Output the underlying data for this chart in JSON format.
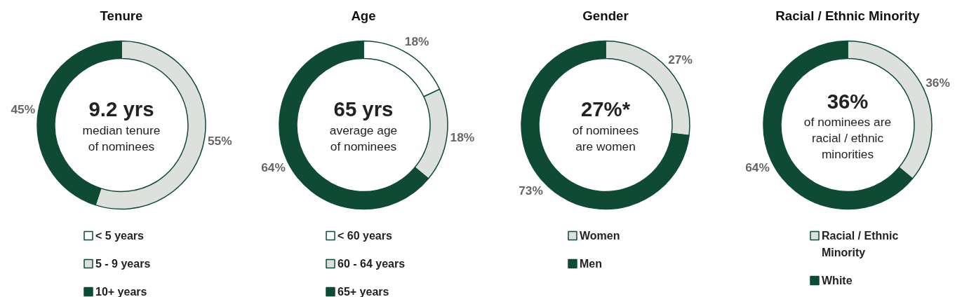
{
  "chart_data": [
    {
      "type": "donut",
      "title": "Tenure",
      "categories": [
        "< 5 years",
        "5 - 9 years",
        "10+ years"
      ],
      "values": [
        0,
        55,
        45
      ],
      "colors": [
        "#ffffff",
        "#dde1dd",
        "#0f4a35"
      ],
      "value_labels": [
        null,
        "55%",
        "45%"
      ],
      "annotations": [
        "9.2 yrs",
        "median tenure\nof nominees"
      ],
      "legend": "bottom"
    },
    {
      "type": "donut",
      "title": "Age",
      "categories": [
        "< 60 years",
        "60 - 64 years",
        "65+ years"
      ],
      "values": [
        18,
        18,
        64
      ],
      "colors": [
        "#ffffff",
        "#dde1dd",
        "#0f4a35"
      ],
      "value_labels": [
        "18%",
        "18%",
        "64%"
      ],
      "annotations": [
        "65 yrs",
        "average age\nof nominees"
      ],
      "legend": "bottom"
    },
    {
      "type": "donut",
      "title": "Gender",
      "categories": [
        "Women",
        "Men"
      ],
      "values": [
        27,
        73
      ],
      "colors": [
        "#dde1dd",
        "#0f4a35"
      ],
      "value_labels": [
        "27%",
        "73%"
      ],
      "annotations": [
        "27%*",
        "of nominees\nare women"
      ],
      "legend": "bottom"
    },
    {
      "type": "donut",
      "title": "Racial / Ethnic Minority",
      "categories": [
        "Racial / Ethnic Minority",
        "White"
      ],
      "values": [
        36,
        64
      ],
      "colors": [
        "#dde1dd",
        "#0f4a35"
      ],
      "value_labels": [
        "36%",
        "64%"
      ],
      "annotations": [
        "36%",
        "of nominees are\nracial / ethnic\nminorities"
      ],
      "legend": "bottom"
    }
  ]
}
